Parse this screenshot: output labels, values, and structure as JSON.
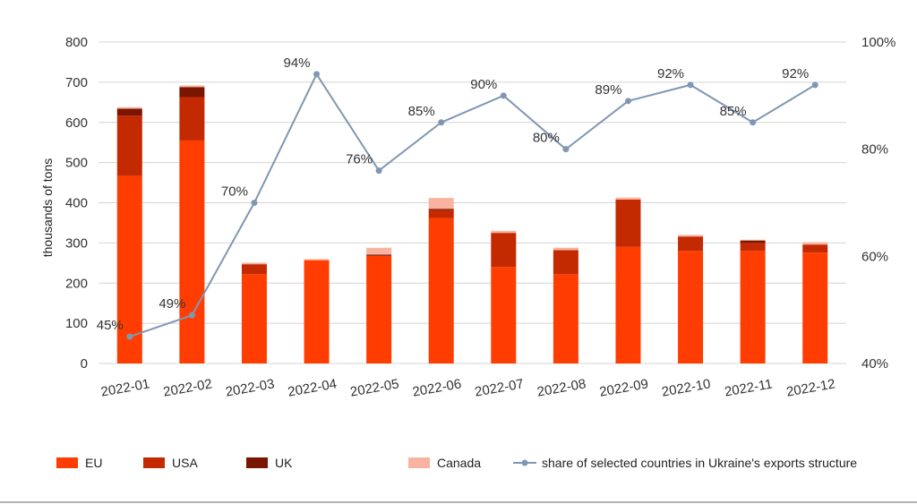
{
  "chart_data": {
    "type": "bar",
    "stacked": true,
    "categories": [
      "2022-01",
      "2022-02",
      "2022-03",
      "2022-04",
      "2022-05",
      "2022-06",
      "2022-07",
      "2022-08",
      "2022-09",
      "2022-10",
      "2022-11",
      "2022-12"
    ],
    "ylabel": "thousands of tons",
    "ylim": [
      0,
      800
    ],
    "yticks": [
      "0",
      "100",
      "200",
      "300",
      "400",
      "500",
      "600",
      "700",
      "800"
    ],
    "y2lim": [
      40,
      100
    ],
    "y2ticks": [
      "40%",
      "60%",
      "80%",
      "100%"
    ],
    "grid": true,
    "legend_position": "bottom",
    "series": [
      {
        "name": "EU",
        "color": "#FF3D00",
        "values": [
          467,
          555,
          222,
          257,
          268,
          362,
          240,
          222,
          290,
          280,
          280,
          276
        ]
      },
      {
        "name": "USA",
        "color": "#C42A02",
        "values": [
          150,
          108,
          25,
          0,
          0,
          20,
          85,
          60,
          118,
          36,
          20,
          20
        ]
      },
      {
        "name": "UK",
        "color": "#7A1500",
        "values": [
          17,
          25,
          0,
          0,
          3,
          3,
          0,
          0,
          0,
          0,
          6,
          0
        ]
      },
      {
        "name": "Canada",
        "color": "#F9B3A0",
        "values": [
          4,
          4,
          4,
          3,
          17,
          27,
          5,
          6,
          5,
          4,
          2,
          6
        ]
      }
    ],
    "line_series": {
      "name": "share of selected countries in Ukraine's exports structure",
      "color": "#7F97B3",
      "axis": "right",
      "values": [
        45,
        49,
        70,
        94,
        76,
        85,
        90,
        80,
        89,
        92,
        85,
        92
      ],
      "labels": [
        "45%",
        "49%",
        "70%",
        "94%",
        "76%",
        "85%",
        "90%",
        "80%",
        "89%",
        "92%",
        "85%",
        "92%"
      ]
    }
  }
}
